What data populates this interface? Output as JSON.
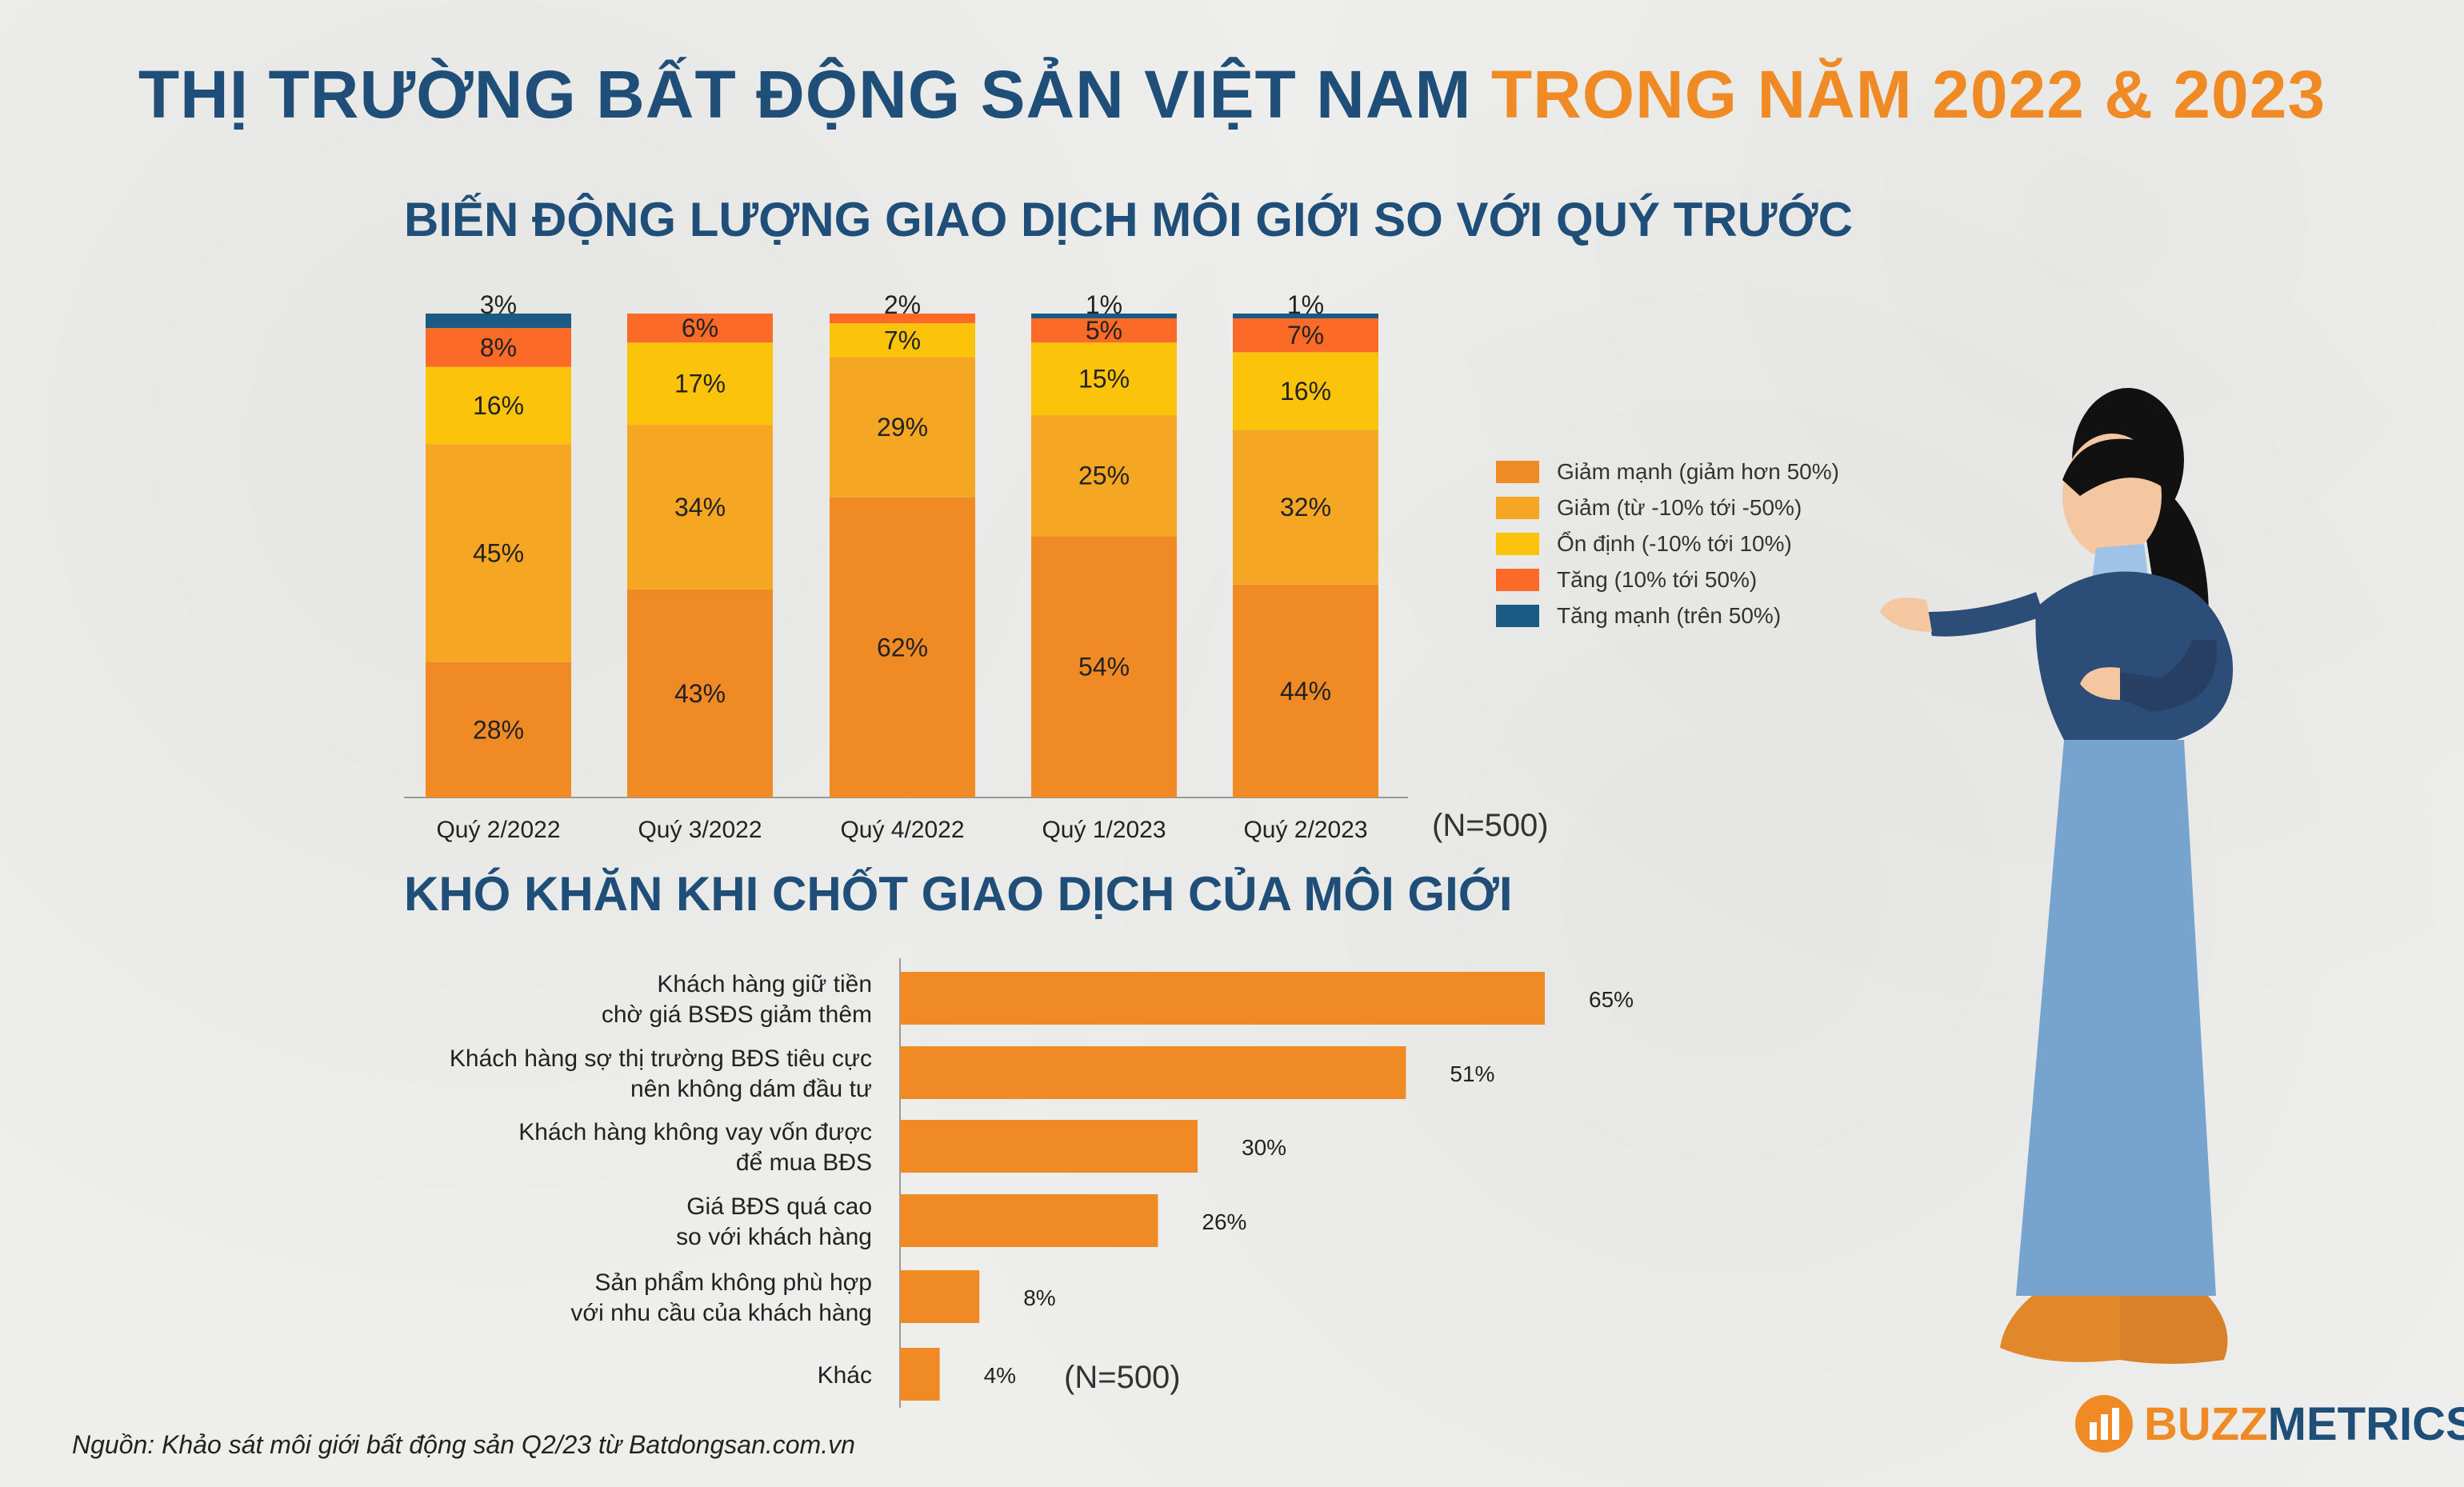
{
  "title": {
    "part1": "THỊ TRƯỜNG BẤT ĐỘNG SẢN VIỆT NAM",
    "part2": "TRONG NĂM 2022 & 2023"
  },
  "colors": {
    "giam_manh": "#f08a24",
    "giam": "#f5a623",
    "on_dinh": "#fcc30b",
    "tang": "#fb6b27",
    "tang_manh": "#1b5a83",
    "navy": "#1f4e79",
    "orange": "#f08a24"
  },
  "chart_data": [
    {
      "type": "bar",
      "stacked": true,
      "title": "BIẾN ĐỘNG LƯỢNG GIAO DỊCH MÔI GIỚI SO VỚI QUÝ TRƯỚC",
      "categories": [
        "Quý 2/2022",
        "Quý 3/2022",
        "Quý 4/2022",
        "Quý 1/2023",
        "Quý 2/2023"
      ],
      "series": [
        {
          "name": "Giảm mạnh (giảm hơn 50%)",
          "values": [
            28,
            43,
            62,
            54,
            44
          ],
          "color": "#f08a24"
        },
        {
          "name": "Giảm (từ -10% tới -50%)",
          "values": [
            45,
            34,
            29,
            25,
            32
          ],
          "color": "#f5a623"
        },
        {
          "name": "Ổn định (-10% tới 10%)",
          "values": [
            16,
            17,
            7,
            15,
            16
          ],
          "color": "#fcc30b"
        },
        {
          "name": "Tăng (10% tới 50%)",
          "values": [
            8,
            6,
            2,
            5,
            7
          ],
          "color": "#fb6b27"
        },
        {
          "name": "Tăng mạnh (trên 50%)",
          "values": [
            3,
            0,
            0,
            1,
            1
          ],
          "color": "#1b5a83"
        }
      ],
      "top_labels": [
        "3%",
        "",
        "2%",
        "1%",
        "1%"
      ],
      "ylim": [
        0,
        100
      ],
      "legend_position": "right",
      "note": "(N=500)"
    },
    {
      "type": "bar",
      "orientation": "horizontal",
      "title": "KHÓ KHĂN KHI CHỐT GIAO DỊCH CỦA MÔI GIỚI",
      "categories": [
        [
          "Khách hàng giữ tiền",
          "chờ giá BSĐS giảm thêm"
        ],
        [
          "Khách hàng sợ thị trường BĐS tiêu cực",
          "nên không dám đầu tư"
        ],
        [
          "Khách hàng không vay vốn được",
          "để mua BĐS"
        ],
        [
          "Giá BĐS quá cao",
          "so với khách hàng"
        ],
        [
          "Sản phẩm không phù hợp",
          "với nhu cầu của khách hàng"
        ],
        [
          "Khác"
        ]
      ],
      "values": [
        65,
        51,
        30,
        26,
        8,
        4
      ],
      "color": "#f08a24",
      "note": "(N=500)"
    }
  ],
  "source": "Nguồn: Khảo sát môi giới bất động sản Q2/23 từ Batdongsan.com.vn",
  "logo": {
    "part1": "BUZZ",
    "part2": "METRICS",
    "icon": "buzzmetrics-logo-icon"
  },
  "illustration": {
    "icon": "presenter-woman-illustration"
  }
}
